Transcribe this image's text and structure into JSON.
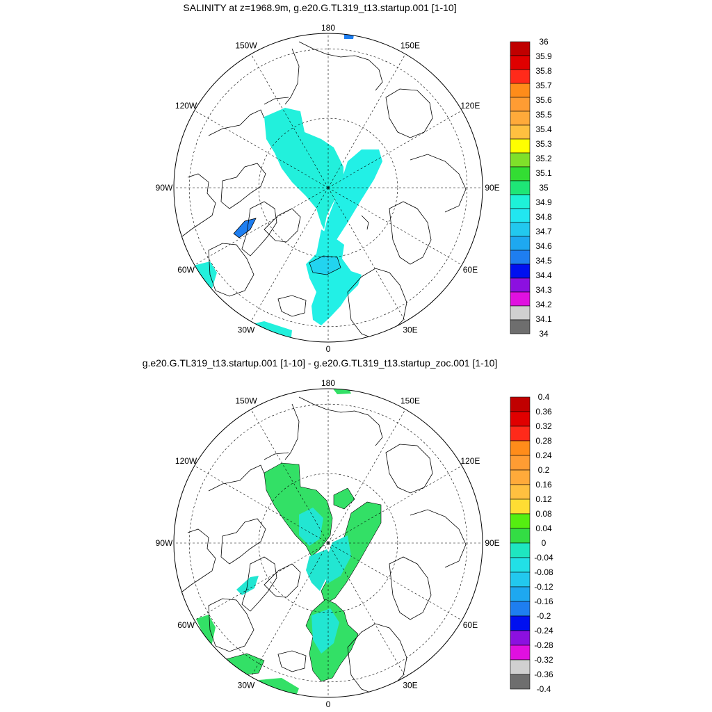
{
  "panels": [
    {
      "title": "SALINITY at z=1968.9m, g.e20.G.TL319_t13.startup.001 [1-10]",
      "lon_labels": [
        "180",
        "150E",
        "120E",
        "90E",
        "60E",
        "30E",
        "0",
        "30W",
        "60W",
        "90W",
        "120W",
        "150W"
      ],
      "colorbar": {
        "levels": [
          "36",
          "35.9",
          "35.8",
          "35.7",
          "35.6",
          "35.5",
          "35.4",
          "35.3",
          "35.2",
          "35.1",
          "35",
          "34.9",
          "34.8",
          "34.7",
          "34.6",
          "34.5",
          "34.4",
          "34.3",
          "34.2",
          "34.1",
          "34"
        ],
        "colors": [
          "#c00000",
          "#e00000",
          "#ff2a1a",
          "#ff8c1a",
          "#ff9c33",
          "#ffaa3a",
          "#ffc040",
          "#ffff00",
          "#7fe02a",
          "#33dd33",
          "#1ee676",
          "#1ef2d8",
          "#22e6f0",
          "#22c8ee",
          "#1ea8f0",
          "#1e7ef0",
          "#0010f0",
          "#8c10e0",
          "#e010e0",
          "#d0d0d0",
          "#6e6e6e"
        ]
      }
    },
    {
      "title": "g.e20.G.TL319_t13.startup.001 [1-10] - g.e20.G.TL319_t13.startup_zoc.001 [1-10]",
      "lon_labels": [
        "180",
        "150E",
        "120E",
        "90E",
        "60E",
        "30E",
        "0",
        "30W",
        "60W",
        "90W",
        "120W",
        "150W"
      ],
      "colorbar": {
        "levels": [
          "0.4",
          "0.36",
          "0.32",
          "0.28",
          "0.24",
          "0.2",
          "0.16",
          "0.12",
          "0.08",
          "0.04",
          "0",
          "-0.04",
          "-0.08",
          "-0.12",
          "-0.16",
          "-0.2",
          "-0.24",
          "-0.28",
          "-0.32",
          "-0.36",
          "-0.4"
        ],
        "colors": [
          "#c00000",
          "#e00000",
          "#ff2a1a",
          "#ff8c1a",
          "#ff9c33",
          "#ffaa3a",
          "#ffc040",
          "#ffdd33",
          "#55ee11",
          "#33dd44",
          "#1ee6c0",
          "#22e0e6",
          "#22c8ee",
          "#1ea8f0",
          "#1e7ef0",
          "#0010f0",
          "#8c10e0",
          "#e010e0",
          "#d0d0d0",
          "#6e6e6e"
        ]
      }
    }
  ]
}
